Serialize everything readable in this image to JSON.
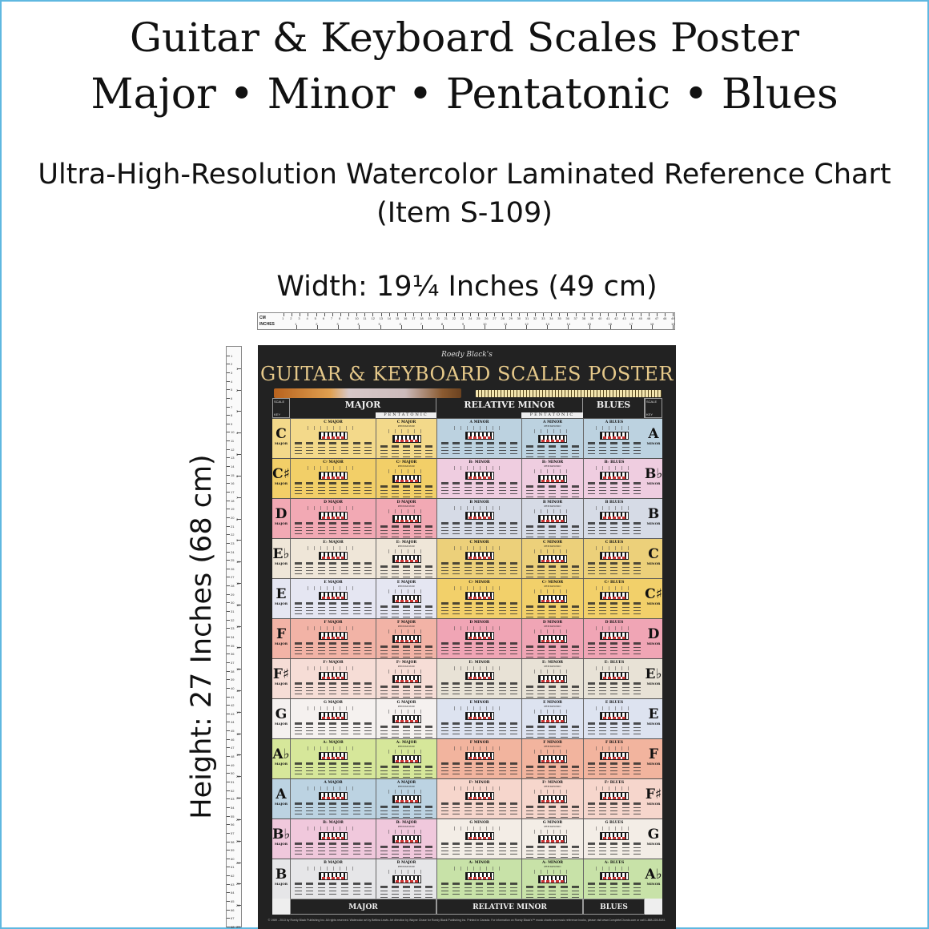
{
  "title_line1": "Guitar & Keyboard Scales Poster",
  "title_line2": "Major • Minor • Pentatonic • Blues",
  "subtitle_line1": "Ultra-High-Resolution Watercolor Laminated Reference Chart",
  "subtitle_line2": "(Item S-109)",
  "width_label": "Width: 19¼ Inches (49 cm)",
  "height_label": "Height: 27 Inches (68 cm)",
  "ruler_h": {
    "cm_label": "CM",
    "inch_label": "INCHES",
    "cm_max": 49,
    "inch_max": 19
  },
  "ruler_v": {
    "cm_label": "CM",
    "inch_label": "INCHES",
    "cm_max": 68,
    "inch_max": 27
  },
  "poster": {
    "brand": "Roedy Black's",
    "title": "GUITAR & KEYBOARD SCALES POSTER",
    "headers": {
      "major": "MAJOR",
      "relative_minor": "RELATIVE MINOR",
      "blues": "BLUES",
      "pentatonic": "PENTATONIC",
      "scale": "SCALE",
      "key": "KEY",
      "major_small": "MAJOR",
      "minor_small": "MINOR"
    },
    "copyright": "© 1989 - 2013 by Roedy Black Publishing Inc. All rights reserved. Watercolor art by Bettina Lewis. Art direction by Wayne Chase for Roedy Black Publishing Inc. Printed in Canada. For information on Roedy Black's™ music charts and music reference books, please visit www.CompleteChords.com or call 1-888-228-8181.",
    "rows": [
      {
        "key_major": "C",
        "key_minor": "A",
        "major": "C MAJOR",
        "minor": "A MINOR",
        "blues": "A BLUES",
        "color_major": "#f3d98a",
        "color_minor": "#bcd2e0"
      },
      {
        "key_major": "C♯",
        "key_minor": "B♭",
        "major": "C♯ MAJOR",
        "minor": "B♭ MINOR",
        "blues": "B♭ BLUES",
        "color_major": "#f2cf68",
        "color_minor": "#efcde0"
      },
      {
        "key_major": "D",
        "key_minor": "B",
        "major": "D MAJOR",
        "minor": "B MINOR",
        "blues": "B BLUES",
        "color_major": "#f2a9b4",
        "color_minor": "#d6dbe6"
      },
      {
        "key_major": "E♭",
        "key_minor": "C",
        "major": "E♭ MAJOR",
        "minor": "C MINOR",
        "blues": "C BLUES",
        "color_major": "#efe6d8",
        "color_minor": "#ecd07a"
      },
      {
        "key_major": "E",
        "key_minor": "C♯",
        "major": "E MAJOR",
        "minor": "C♯ MINOR",
        "blues": "C♯ BLUES",
        "color_major": "#e5e6f2",
        "color_minor": "#f2d06a"
      },
      {
        "key_major": "F",
        "key_minor": "D",
        "major": "F MAJOR",
        "minor": "D MINOR",
        "blues": "D BLUES",
        "color_major": "#f2b3a6",
        "color_minor": "#f0a5b5"
      },
      {
        "key_major": "F♯",
        "key_minor": "E♭",
        "major": "F♯ MAJOR",
        "minor": "E♭ MINOR",
        "blues": "E♭ BLUES",
        "color_major": "#f6ddd6",
        "color_minor": "#e8e2d6"
      },
      {
        "key_major": "G",
        "key_minor": "E",
        "major": "G MAJOR",
        "minor": "E MINOR",
        "blues": "E BLUES",
        "color_major": "#f5f1ef",
        "color_minor": "#dde3f0"
      },
      {
        "key_major": "A♭",
        "key_minor": "F",
        "major": "A♭ MAJOR",
        "minor": "F MINOR",
        "blues": "F BLUES",
        "color_major": "#d6e79a",
        "color_minor": "#f2b49e"
      },
      {
        "key_major": "A",
        "key_minor": "F♯",
        "major": "A MAJOR",
        "minor": "F♯ MINOR",
        "blues": "F♯ BLUES",
        "color_major": "#bcd3e2",
        "color_minor": "#f6d6cc"
      },
      {
        "key_major": "B♭",
        "key_minor": "G",
        "major": "B♭ MAJOR",
        "minor": "G MINOR",
        "blues": "G BLUES",
        "color_major": "#f0c8dc",
        "color_minor": "#f3ede6"
      },
      {
        "key_major": "B",
        "key_minor": "A♭",
        "major": "B MAJOR",
        "minor": "A♭ MINOR",
        "blues": "A♭ BLUES",
        "color_major": "#e6e6e8",
        "color_minor": "#c8e2a8"
      }
    ]
  },
  "colors": {
    "border": "#5fb8e0",
    "poster_bg": "#222222",
    "poster_title": "#e6c98a"
  }
}
